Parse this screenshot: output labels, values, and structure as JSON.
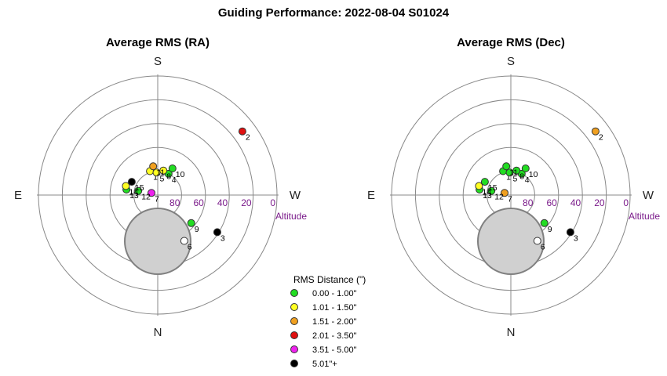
{
  "title": "Guiding Performance: 2022-08-04 S01024",
  "chart_data": {
    "type": "scatter",
    "coordinate_system": "polar (azimuth / altitude)",
    "compass": {
      "north": "N",
      "south": "S",
      "east": "E",
      "west": "W"
    },
    "altitude_ticks": [
      "80",
      "60",
      "40",
      "20",
      "0"
    ],
    "altitude_label": "Altitude",
    "legend": {
      "title": "RMS Distance (\")",
      "items": [
        {
          "label": "0.00 - 1.00\"",
          "color": "#22dd22"
        },
        {
          "label": "1.01 - 1.50\"",
          "color": "#ffff22"
        },
        {
          "label": "1.51 - 2.00\"",
          "color": "#f0a020"
        },
        {
          "label": "2.01 - 3.50\"",
          "color": "#e01010"
        },
        {
          "label": "3.51 - 5.00\"",
          "color": "#ee22ee"
        },
        {
          "label": "5.01\"+",
          "color": "#000000"
        }
      ]
    },
    "panels": [
      {
        "title": "Average RMS (RA)",
        "points": [
          {
            "label": "1",
            "az": 162,
            "alt": 71,
            "color": "#ffff22"
          },
          {
            "label": "2",
            "az": 233,
            "alt": 10,
            "color": "#e01010"
          },
          {
            "label": "3",
            "az": 302,
            "alt": 37,
            "color": "#000000"
          },
          {
            "label": "4",
            "az": 207,
            "alt": 72,
            "color": "#22dd22"
          },
          {
            "label": "5",
            "az": 177,
            "alt": 73,
            "color": "#ffff22"
          },
          {
            "label": "6",
            "az": 330,
            "alt": 50,
            "color": "#ffffff"
          },
          {
            "label": "7",
            "az": 109,
            "alt": 85,
            "color": "#ee22ee"
          },
          {
            "label": "8",
            "az": 193,
            "alt": 71,
            "color": "#ffff22"
          },
          {
            "label": "9",
            "az": 310,
            "alt": 57,
            "color": "#22dd22"
          },
          {
            "label": "10",
            "az": 209,
            "alt": 67,
            "color": "#22dd22"
          },
          {
            "label": "11",
            "az": 171,
            "alt": 68,
            "color": "#f0a020"
          },
          {
            "label": "12",
            "az": 102,
            "alt": 75,
            "color": "#22dd22"
          },
          {
            "label": "13",
            "az": 100,
            "alt": 66,
            "color": "#22dd22"
          },
          {
            "label": "14",
            "az": 106,
            "alt": 65,
            "color": "#ffff22"
          },
          {
            "label": "15",
            "az": 117,
            "alt": 68,
            "color": "#000000"
          }
        ]
      },
      {
        "title": "Average RMS (Dec)",
        "points": [
          {
            "label": "1",
            "az": 162,
            "alt": 71,
            "color": "#22dd22"
          },
          {
            "label": "2",
            "az": 233,
            "alt": 10,
            "color": "#f0a020"
          },
          {
            "label": "3",
            "az": 302,
            "alt": 37,
            "color": "#000000"
          },
          {
            "label": "4",
            "az": 207,
            "alt": 72,
            "color": "#22dd22"
          },
          {
            "label": "5",
            "az": 177,
            "alt": 73,
            "color": "#22dd22"
          },
          {
            "label": "6",
            "az": 330,
            "alt": 50,
            "color": "#ffffff"
          },
          {
            "label": "7",
            "az": 109,
            "alt": 85,
            "color": "#f0a020"
          },
          {
            "label": "8",
            "az": 193,
            "alt": 71,
            "color": "#22dd22"
          },
          {
            "label": "9",
            "az": 310,
            "alt": 57,
            "color": "#22dd22"
          },
          {
            "label": "10",
            "az": 209,
            "alt": 67,
            "color": "#22dd22"
          },
          {
            "label": "11",
            "az": 171,
            "alt": 68,
            "color": "#22dd22"
          },
          {
            "label": "12",
            "az": 102,
            "alt": 75,
            "color": "#22dd22"
          },
          {
            "label": "13",
            "az": 100,
            "alt": 66,
            "color": "#22dd22"
          },
          {
            "label": "14",
            "az": 106,
            "alt": 65,
            "color": "#ffff22"
          },
          {
            "label": "15",
            "az": 117,
            "alt": 68,
            "color": "#22dd22"
          }
        ]
      }
    ]
  }
}
